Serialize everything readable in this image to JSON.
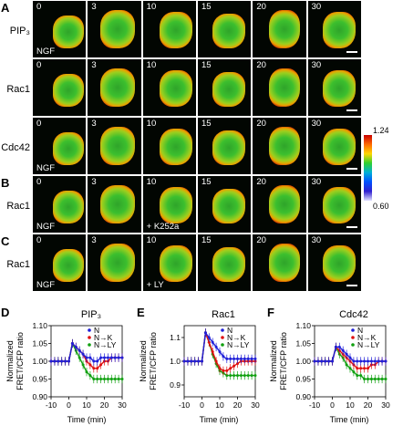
{
  "panels": {
    "A": {
      "letter": "A",
      "rows": [
        {
          "label": "PIP₃",
          "tag": "",
          "times": [
            "0",
            "3",
            "10",
            "15",
            "20",
            "30"
          ]
        },
        {
          "label": "Rac1",
          "tag": "NGF",
          "times": [
            "0",
            "3",
            "10",
            "15",
            "20",
            "30"
          ]
        },
        {
          "label": "Cdc42",
          "tag": "NGF",
          "times": [
            "0",
            "3",
            "10",
            "15",
            "20",
            "30"
          ]
        }
      ]
    },
    "B": {
      "letter": "B",
      "label": "Rac1",
      "times": [
        "0",
        "3",
        "10",
        "15",
        "20",
        "30"
      ],
      "tag_left": "NGF",
      "tag_mid": "+ K252a"
    },
    "C": {
      "letter": "C",
      "label": "Rac1",
      "times": [
        "0",
        "3",
        "10",
        "15",
        "20",
        "30"
      ],
      "tag_left": "NGF",
      "tag_mid": "+ LY"
    }
  },
  "first_row_tag": "NGF",
  "colorbar": {
    "max": "1.24",
    "min": "0.60"
  },
  "chart_data": [
    {
      "letter": "D",
      "title": "PIP₃",
      "type": "line",
      "ylabel": "Normalized FRET/CFP ratio",
      "xlabel": "Time (min)",
      "xlim": [
        -10,
        30
      ],
      "ylim": [
        0.9,
        1.1
      ],
      "yticks": [
        "0.90",
        "0.95",
        "1.00",
        "1.05",
        "1.10"
      ],
      "xticks": [
        "-10",
        "0",
        "10",
        "20",
        "30"
      ],
      "x": [
        -10,
        -8,
        -6,
        -4,
        -2,
        0,
        2,
        4,
        6,
        8,
        10,
        12,
        14,
        16,
        18,
        20,
        22,
        24,
        26,
        28,
        30
      ],
      "series": [
        {
          "name": "N",
          "color": "#1f1fd8",
          "values": [
            1.0,
            1.0,
            1.0,
            1.0,
            1.0,
            1.0,
            1.05,
            1.04,
            1.03,
            1.02,
            1.01,
            1.01,
            1.0,
            1.0,
            1.01,
            1.01,
            1.01,
            1.01,
            1.01,
            1.01,
            1.01
          ]
        },
        {
          "name": "N→K",
          "color": "#e01010",
          "values": [
            1.0,
            1.0,
            1.0,
            1.0,
            1.0,
            1.0,
            1.05,
            1.04,
            1.03,
            1.02,
            1.0,
            0.99,
            0.98,
            0.98,
            0.99,
            1.0,
            1.0,
            1.01,
            1.01,
            1.01,
            1.01
          ]
        },
        {
          "name": "N→LY",
          "color": "#10a010",
          "values": [
            1.0,
            1.0,
            1.0,
            1.0,
            1.0,
            1.0,
            1.05,
            1.03,
            1.01,
            0.99,
            0.97,
            0.96,
            0.95,
            0.95,
            0.95,
            0.95,
            0.95,
            0.95,
            0.95,
            0.95,
            0.95
          ]
        }
      ]
    },
    {
      "letter": "E",
      "title": "Rac1",
      "type": "line",
      "ylabel": "Normalized FRET/CFP ratio",
      "xlabel": "Time (min)",
      "xlim": [
        -10,
        30
      ],
      "ylim": [
        0.85,
        1.15
      ],
      "yticks": [
        "0.9",
        "1.0",
        "1.1"
      ],
      "xticks": [
        "-10",
        "0",
        "10",
        "20",
        "30"
      ],
      "x": [
        -10,
        -8,
        -6,
        -4,
        -2,
        0,
        2,
        4,
        6,
        8,
        10,
        12,
        14,
        16,
        18,
        20,
        22,
        24,
        26,
        28,
        30
      ],
      "series": [
        {
          "name": "N",
          "color": "#1f1fd8",
          "values": [
            1.0,
            1.0,
            1.0,
            1.0,
            1.0,
            1.0,
            1.12,
            1.1,
            1.08,
            1.06,
            1.04,
            1.02,
            1.01,
            1.01,
            1.01,
            1.01,
            1.01,
            1.01,
            1.01,
            1.01,
            1.01
          ]
        },
        {
          "name": "N→K",
          "color": "#e01010",
          "values": [
            1.0,
            1.0,
            1.0,
            1.0,
            1.0,
            1.0,
            1.12,
            1.08,
            1.04,
            1.0,
            0.97,
            0.96,
            0.96,
            0.97,
            0.98,
            0.99,
            1.0,
            1.0,
            1.0,
            1.0,
            1.0
          ]
        },
        {
          "name": "N→LY",
          "color": "#10a010",
          "values": [
            1.0,
            1.0,
            1.0,
            1.0,
            1.0,
            1.0,
            1.12,
            1.08,
            1.03,
            0.99,
            0.96,
            0.95,
            0.94,
            0.94,
            0.94,
            0.94,
            0.94,
            0.94,
            0.94,
            0.94,
            0.94
          ]
        }
      ]
    },
    {
      "letter": "F",
      "title": "Cdc42",
      "type": "line",
      "ylabel": "Normalized FRET/CFP ratio",
      "xlabel": "Time (min)",
      "xlim": [
        -10,
        30
      ],
      "ylim": [
        0.9,
        1.1
      ],
      "yticks": [
        "0.90",
        "0.95",
        "1.00",
        "1.05",
        "1.10"
      ],
      "xticks": [
        "-10",
        "0",
        "10",
        "20",
        "30"
      ],
      "x": [
        -10,
        -8,
        -6,
        -4,
        -2,
        0,
        2,
        4,
        6,
        8,
        10,
        12,
        14,
        16,
        18,
        20,
        22,
        24,
        26,
        28,
        30
      ],
      "series": [
        {
          "name": "N",
          "color": "#1f1fd8",
          "values": [
            1.0,
            1.0,
            1.0,
            1.0,
            1.0,
            1.0,
            1.04,
            1.04,
            1.03,
            1.02,
            1.01,
            1.0,
            1.0,
            1.0,
            1.0,
            1.0,
            1.0,
            1.0,
            1.0,
            1.0,
            1.0
          ]
        },
        {
          "name": "N→K",
          "color": "#e01010",
          "values": [
            1.0,
            1.0,
            1.0,
            1.0,
            1.0,
            1.0,
            1.04,
            1.03,
            1.02,
            1.01,
            1.0,
            0.99,
            0.98,
            0.98,
            0.98,
            0.98,
            0.99,
            0.99,
            1.0,
            1.0,
            1.0
          ]
        },
        {
          "name": "N→LY",
          "color": "#10a010",
          "values": [
            1.0,
            1.0,
            1.0,
            1.0,
            1.0,
            1.0,
            1.04,
            1.02,
            1.01,
            0.99,
            0.98,
            0.97,
            0.96,
            0.96,
            0.95,
            0.95,
            0.95,
            0.95,
            0.95,
            0.95,
            0.95
          ]
        }
      ]
    }
  ]
}
